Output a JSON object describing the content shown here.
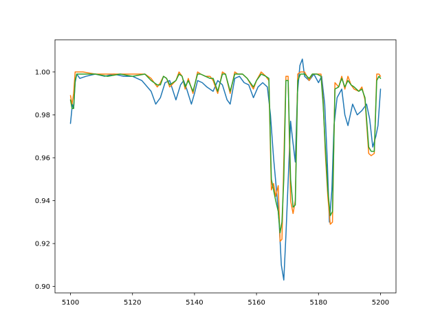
{
  "chart_data": {
    "type": "line",
    "title": "",
    "xlabel": "",
    "ylabel": "",
    "xlim": [
      5095,
      5205
    ],
    "ylim": [
      0.897,
      1.015
    ],
    "xticks": [
      5100,
      5120,
      5140,
      5160,
      5180,
      5200
    ],
    "yticks": [
      0.9,
      0.92,
      0.94,
      0.96,
      0.98,
      1.0
    ],
    "xtick_labels": [
      "5100",
      "5120",
      "5140",
      "5160",
      "5180",
      "5200"
    ],
    "ytick_labels": [
      "0.90",
      "0.92",
      "0.94",
      "0.96",
      "0.98",
      "1.00"
    ],
    "grid": false,
    "legend": "none",
    "series": [
      {
        "color": "#1f77b4",
        "x": [
          5100,
          5100.6,
          5101,
          5101.5,
          5102,
          5103,
          5105,
          5108,
          5111,
          5114,
          5117,
          5120,
          5123,
          5126,
          5127.5,
          5129,
          5130.5,
          5132,
          5134,
          5135.5,
          5136.5,
          5137.5,
          5139,
          5140,
          5141,
          5142.5,
          5144,
          5146,
          5147.5,
          5149,
          5150.5,
          5151.5,
          5153,
          5154.5,
          5156,
          5157.5,
          5159,
          5160.5,
          5162,
          5163.5,
          5164.5,
          5165.5,
          5166.5,
          5167.3,
          5168,
          5168.8,
          5169.5,
          5170.3,
          5171,
          5171.7,
          5172.5,
          5173.2,
          5174,
          5174.8,
          5175.5,
          5177,
          5178.5,
          5180,
          5181,
          5182,
          5182.8,
          5183.5,
          5184.3,
          5185,
          5186,
          5187.5,
          5188.5,
          5189.5,
          5191,
          5192.5,
          5194,
          5195.5,
          5196.5,
          5197.5,
          5198.5,
          5199.2,
          5200
        ],
        "y": [
          0.976,
          0.985,
          0.983,
          0.995,
          0.999,
          0.997,
          0.998,
          0.999,
          0.998,
          0.999,
          0.998,
          0.998,
          0.996,
          0.991,
          0.985,
          0.988,
          0.995,
          0.996,
          0.987,
          0.994,
          0.996,
          0.992,
          0.985,
          0.99,
          0.996,
          0.995,
          0.993,
          0.991,
          0.996,
          0.994,
          0.987,
          0.985,
          0.997,
          0.998,
          0.995,
          0.994,
          0.988,
          0.993,
          0.995,
          0.993,
          0.98,
          0.96,
          0.944,
          0.93,
          0.91,
          0.903,
          0.924,
          0.952,
          0.977,
          0.968,
          0.958,
          0.99,
          1.003,
          1.006,
          0.998,
          0.996,
          0.999,
          0.995,
          0.998,
          0.985,
          0.96,
          0.93,
          0.945,
          0.975,
          0.988,
          0.992,
          0.98,
          0.975,
          0.985,
          0.98,
          0.982,
          0.985,
          0.978,
          0.965,
          0.97,
          0.975,
          0.992
        ]
      },
      {
        "color": "#ff7f0e",
        "x": [
          5100,
          5100.5,
          5101,
          5101.5,
          5102,
          5104,
          5108,
          5112,
          5116,
          5120,
          5124,
          5126,
          5128,
          5129,
          5130,
          5131,
          5132,
          5134,
          5135,
          5136,
          5137,
          5138,
          5139.5,
          5141,
          5142,
          5143.5,
          5145,
          5146,
          5147.5,
          5149,
          5150,
          5151.5,
          5153,
          5154,
          5155.5,
          5157,
          5159,
          5160,
          5161.5,
          5163,
          5164,
          5164.8,
          5165.5,
          5166.2,
          5167,
          5167.6,
          5168.2,
          5168.8,
          5169.5,
          5170.2,
          5171,
          5171.8,
          5172.5,
          5173.3,
          5174.2,
          5175.5,
          5177,
          5178,
          5179.5,
          5180.8,
          5181.5,
          5182.2,
          5183,
          5183.8,
          5184.5,
          5185.3,
          5186.5,
          5187.5,
          5188.5,
          5189.5,
          5190.5,
          5191.5,
          5193,
          5194,
          5195,
          5196.2,
          5197,
          5198,
          5198.8,
          5199.5,
          5200
        ],
        "y": [
          0.989,
          0.985,
          0.99,
          1.0,
          1.0,
          1.0,
          0.999,
          0.999,
          0.999,
          0.999,
          0.999,
          0.997,
          0.993,
          0.995,
          0.998,
          0.997,
          0.993,
          0.996,
          1.0,
          0.998,
          0.992,
          0.997,
          0.99,
          1.0,
          0.999,
          0.998,
          0.998,
          0.996,
          0.99,
          1.0,
          0.999,
          0.99,
          1.0,
          0.999,
          0.999,
          0.997,
          0.992,
          0.996,
          1.0,
          0.998,
          0.996,
          0.945,
          0.948,
          0.942,
          0.947,
          0.921,
          0.922,
          0.958,
          0.998,
          0.998,
          0.94,
          0.934,
          0.94,
          0.999,
          1.0,
          1.0,
          0.996,
          0.999,
          0.999,
          0.999,
          0.987,
          0.962,
          0.942,
          0.929,
          0.93,
          0.995,
          0.993,
          0.998,
          0.992,
          0.998,
          0.994,
          0.992,
          0.991,
          0.993,
          0.987,
          0.962,
          0.961,
          0.962,
          0.999,
          0.999,
          0.998
        ]
      },
      {
        "color": "#2ca02c",
        "x": [
          5100,
          5100.5,
          5101,
          5101.5,
          5102,
          5104,
          5108,
          5112,
          5116,
          5120,
          5124,
          5126,
          5128,
          5129,
          5130,
          5131,
          5132,
          5134,
          5135,
          5136,
          5137,
          5138,
          5139.5,
          5141,
          5142,
          5143.5,
          5145,
          5146,
          5147.5,
          5149,
          5150,
          5151.5,
          5153,
          5154,
          5155.5,
          5157,
          5159,
          5160,
          5161.5,
          5163,
          5164,
          5164.8,
          5165.5,
          5166.2,
          5167,
          5167.6,
          5168.2,
          5168.8,
          5169.5,
          5170.2,
          5171,
          5171.8,
          5172.5,
          5173.3,
          5174.2,
          5175.5,
          5177,
          5178,
          5179.5,
          5180.8,
          5181.5,
          5182.2,
          5183,
          5183.8,
          5184.5,
          5185.3,
          5186.5,
          5187.5,
          5188.5,
          5189.5,
          5190.5,
          5191.5,
          5193,
          5194,
          5195,
          5196.2,
          5197,
          5198,
          5198.8,
          5199.5,
          5200
        ],
        "y": [
          0.987,
          0.983,
          0.983,
          0.996,
          0.999,
          0.999,
          0.999,
          0.998,
          0.999,
          0.998,
          0.999,
          0.996,
          0.994,
          0.994,
          0.998,
          0.997,
          0.994,
          0.996,
          0.999,
          0.998,
          0.993,
          0.996,
          0.991,
          0.999,
          0.999,
          0.998,
          0.997,
          0.997,
          0.991,
          0.999,
          0.999,
          0.991,
          0.999,
          0.999,
          0.999,
          0.997,
          0.993,
          0.996,
          0.999,
          0.998,
          0.997,
          0.95,
          0.945,
          0.94,
          0.935,
          0.925,
          0.93,
          0.95,
          0.996,
          0.996,
          0.95,
          0.937,
          0.938,
          0.996,
          0.999,
          0.999,
          0.997,
          0.999,
          0.999,
          0.998,
          0.985,
          0.965,
          0.945,
          0.933,
          0.935,
          0.992,
          0.993,
          0.997,
          0.993,
          0.996,
          0.994,
          0.993,
          0.991,
          0.992,
          0.988,
          0.965,
          0.963,
          0.963,
          0.996,
          0.998,
          0.997
        ]
      }
    ]
  }
}
